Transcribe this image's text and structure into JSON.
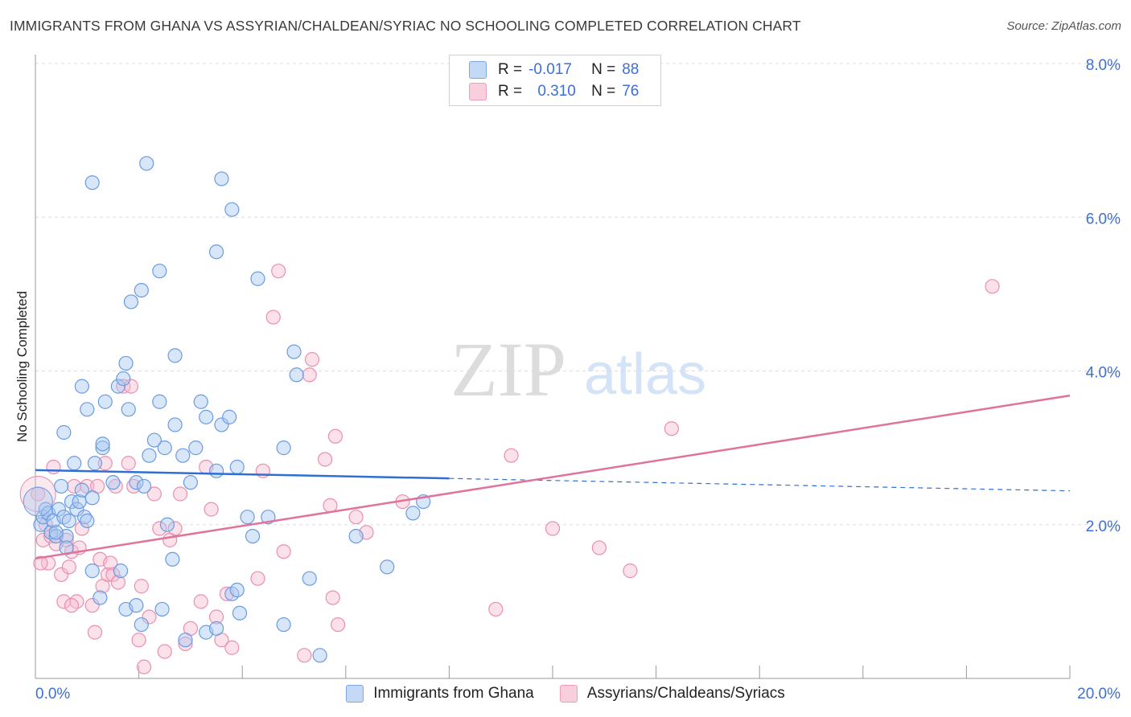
{
  "title": "IMMIGRANTS FROM GHANA VS ASSYRIAN/CHALDEAN/SYRIAC NO SCHOOLING COMPLETED CORRELATION CHART",
  "source": "Source: ZipAtlas.com",
  "watermark": {
    "zip": "ZIP",
    "atlas": "atlas"
  },
  "colors": {
    "blue_fill": "#a9c8f2",
    "blue_stroke": "#6b9be0",
    "blue_line": "#2f6fd3",
    "pink_fill": "#f6bcd0",
    "pink_stroke": "#ea8fae",
    "pink_line": "#e0739b",
    "axis_text": "#3d6fd6"
  },
  "legend": {
    "r_label": "R =",
    "n_label": "N =",
    "rows": [
      {
        "r": "-0.017",
        "n": "88"
      },
      {
        "r": "0.310",
        "n": "76"
      }
    ]
  },
  "bottom_legend": [
    "Immigrants from Ghana",
    "Assyrians/Chaldeans/Syriacs"
  ],
  "chart_data": {
    "type": "scatter",
    "title": "IMMIGRANTS FROM GHANA VS ASSYRIAN/CHALDEAN/SYRIAC NO SCHOOLING COMPLETED CORRELATION CHART",
    "xlabel": "",
    "ylabel": "No Schooling Completed",
    "xlim": [
      0,
      20
    ],
    "ylim": [
      0,
      8.0
    ],
    "x_tick_labels": [
      "0.0%",
      "20.0%"
    ],
    "y_ticks": [
      2,
      4,
      6,
      8
    ],
    "y_tick_labels": [
      "2.0%",
      "4.0%",
      "6.0%",
      "8.0%"
    ],
    "grid": "horizontal dashed",
    "series": [
      {
        "name": "Immigrants from Ghana",
        "r": -0.017,
        "n": 88,
        "trend": {
          "x0": 0,
          "y0": 2.71,
          "x1": 20,
          "y1": 2.44,
          "solid_until": 8
        },
        "points": [
          [
            0.1,
            2.0
          ],
          [
            0.15,
            2.1
          ],
          [
            0.2,
            2.2
          ],
          [
            0.25,
            2.15
          ],
          [
            0.3,
            1.9
          ],
          [
            0.35,
            2.05
          ],
          [
            0.4,
            1.85
          ],
          [
            0.45,
            2.2
          ],
          [
            0.5,
            2.5
          ],
          [
            0.55,
            2.1
          ],
          [
            0.6,
            1.85
          ],
          [
            0.65,
            2.05
          ],
          [
            0.7,
            2.3
          ],
          [
            0.75,
            2.8
          ],
          [
            0.8,
            2.2
          ],
          [
            0.85,
            2.3
          ],
          [
            0.9,
            2.45
          ],
          [
            0.95,
            2.1
          ],
          [
            1.0,
            2.05
          ],
          [
            1.1,
            2.35
          ],
          [
            1.15,
            2.8
          ],
          [
            1.3,
            3.0
          ],
          [
            1.35,
            3.6
          ],
          [
            1.5,
            2.55
          ],
          [
            1.6,
            3.8
          ],
          [
            1.7,
            3.9
          ],
          [
            1.75,
            4.1
          ],
          [
            1.8,
            3.5
          ],
          [
            1.95,
            2.55
          ],
          [
            2.1,
            2.5
          ],
          [
            2.2,
            2.9
          ],
          [
            2.3,
            3.1
          ],
          [
            2.4,
            3.6
          ],
          [
            2.5,
            3.0
          ],
          [
            2.55,
            2.0
          ],
          [
            2.7,
            3.3
          ],
          [
            2.85,
            2.9
          ],
          [
            3.0,
            2.55
          ],
          [
            3.1,
            3.0
          ],
          [
            3.2,
            3.6
          ],
          [
            3.3,
            3.4
          ],
          [
            3.5,
            2.7
          ],
          [
            3.6,
            3.3
          ],
          [
            3.75,
            3.4
          ],
          [
            3.9,
            2.75
          ],
          [
            4.1,
            2.1
          ],
          [
            4.2,
            1.85
          ],
          [
            4.5,
            2.1
          ],
          [
            4.8,
            3.0
          ],
          [
            5.0,
            4.25
          ],
          [
            5.05,
            3.95
          ],
          [
            5.3,
            1.3
          ],
          [
            1.1,
            6.45
          ],
          [
            2.15,
            6.7
          ],
          [
            3.6,
            6.5
          ],
          [
            3.8,
            6.1
          ],
          [
            3.5,
            5.55
          ],
          [
            4.3,
            5.2
          ],
          [
            2.4,
            5.3
          ],
          [
            2.05,
            5.05
          ],
          [
            1.85,
            4.9
          ],
          [
            2.7,
            4.2
          ],
          [
            0.55,
            3.2
          ],
          [
            0.9,
            3.8
          ],
          [
            1.3,
            3.05
          ],
          [
            1.0,
            3.5
          ],
          [
            1.1,
            1.4
          ],
          [
            1.25,
            1.05
          ],
          [
            1.65,
            1.4
          ],
          [
            1.75,
            0.9
          ],
          [
            1.95,
            0.95
          ],
          [
            2.05,
            0.7
          ],
          [
            2.45,
            0.9
          ],
          [
            2.65,
            1.55
          ],
          [
            2.9,
            0.5
          ],
          [
            3.3,
            0.6
          ],
          [
            3.5,
            0.65
          ],
          [
            3.8,
            1.1
          ],
          [
            3.9,
            1.15
          ],
          [
            3.95,
            0.85
          ],
          [
            4.8,
            0.7
          ],
          [
            5.5,
            0.3
          ],
          [
            6.8,
            1.45
          ],
          [
            6.2,
            1.85
          ],
          [
            7.3,
            2.15
          ],
          [
            7.5,
            2.3
          ],
          [
            0.4,
            1.9
          ],
          [
            0.6,
            1.7
          ]
        ]
      },
      {
        "name": "Assyrians/Chaldeans/Syriacs",
        "r": 0.31,
        "n": 76,
        "trend": {
          "x0": 0,
          "y0": 1.56,
          "x1": 20,
          "y1": 3.68
        },
        "points": [
          [
            0.05,
            2.4
          ],
          [
            0.15,
            1.8
          ],
          [
            0.2,
            2.0
          ],
          [
            0.25,
            1.5
          ],
          [
            0.3,
            1.85
          ],
          [
            0.35,
            2.75
          ],
          [
            0.4,
            1.75
          ],
          [
            0.5,
            1.35
          ],
          [
            0.55,
            1.0
          ],
          [
            0.6,
            1.8
          ],
          [
            0.65,
            1.45
          ],
          [
            0.7,
            1.65
          ],
          [
            0.75,
            2.5
          ],
          [
            0.8,
            1.0
          ],
          [
            0.85,
            1.7
          ],
          [
            0.9,
            1.95
          ],
          [
            1.0,
            2.5
          ],
          [
            1.1,
            0.95
          ],
          [
            1.15,
            0.6
          ],
          [
            1.2,
            2.5
          ],
          [
            1.25,
            1.55
          ],
          [
            1.3,
            1.2
          ],
          [
            1.35,
            2.8
          ],
          [
            1.4,
            1.35
          ],
          [
            1.45,
            1.5
          ],
          [
            1.5,
            1.35
          ],
          [
            1.6,
            1.25
          ],
          [
            1.7,
            3.8
          ],
          [
            1.8,
            2.8
          ],
          [
            1.85,
            3.8
          ],
          [
            1.9,
            2.5
          ],
          [
            2.0,
            0.5
          ],
          [
            2.05,
            1.2
          ],
          [
            2.1,
            0.15
          ],
          [
            2.2,
            0.8
          ],
          [
            2.3,
            2.4
          ],
          [
            2.4,
            1.95
          ],
          [
            2.5,
            0.35
          ],
          [
            2.6,
            1.8
          ],
          [
            2.7,
            1.95
          ],
          [
            2.8,
            2.4
          ],
          [
            2.9,
            0.45
          ],
          [
            3.0,
            0.65
          ],
          [
            3.2,
            1.0
          ],
          [
            3.3,
            2.75
          ],
          [
            3.4,
            2.2
          ],
          [
            3.5,
            0.8
          ],
          [
            3.6,
            0.5
          ],
          [
            3.7,
            1.1
          ],
          [
            3.8,
            0.4
          ],
          [
            4.3,
            1.3
          ],
          [
            4.4,
            2.7
          ],
          [
            4.6,
            4.7
          ],
          [
            4.7,
            5.3
          ],
          [
            4.8,
            1.65
          ],
          [
            5.2,
            0.3
          ],
          [
            5.35,
            4.15
          ],
          [
            5.3,
            3.95
          ],
          [
            5.6,
            2.85
          ],
          [
            5.7,
            2.25
          ],
          [
            5.75,
            1.05
          ],
          [
            5.8,
            3.15
          ],
          [
            5.85,
            0.7
          ],
          [
            6.2,
            2.1
          ],
          [
            6.4,
            1.9
          ],
          [
            7.1,
            2.3
          ],
          [
            8.9,
            0.9
          ],
          [
            9.2,
            2.9
          ],
          [
            10.0,
            1.95
          ],
          [
            10.9,
            1.7
          ],
          [
            11.5,
            1.4
          ],
          [
            12.3,
            3.25
          ],
          [
            18.5,
            5.1
          ],
          [
            0.1,
            1.5
          ],
          [
            0.7,
            0.95
          ],
          [
            1.55,
            2.5
          ]
        ]
      }
    ]
  }
}
